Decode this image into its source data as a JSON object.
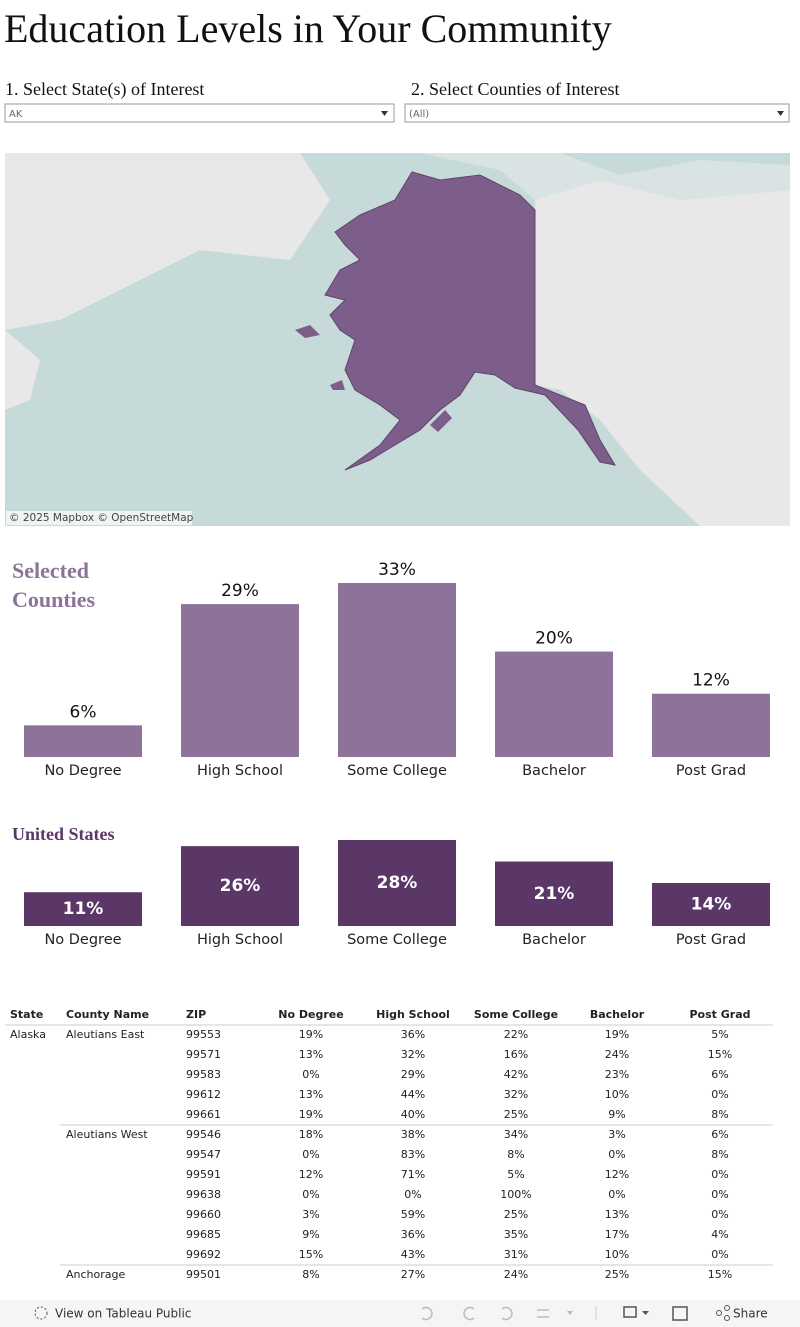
{
  "title": "Education Levels in Your Community",
  "filters": [
    {
      "label": "1.  Select State(s) of Interest",
      "value": "AK"
    },
    {
      "label": "2.  Select Counties of Interest",
      "value": "(All)"
    }
  ],
  "map": {
    "attribution": "© 2025 Mapbox  © OpenStreetMap"
  },
  "chart_data": [
    {
      "type": "bar",
      "title": "Selected Counties",
      "categories": [
        "No Degree",
        "High School",
        "Some College",
        "Bachelor",
        "Post Grad"
      ],
      "values": [
        6,
        29,
        33,
        20,
        12
      ],
      "value_labels": [
        "6%",
        "29%",
        "33%",
        "20%",
        "12%"
      ],
      "color": "#8d7399",
      "label_position": "outside"
    },
    {
      "type": "bar",
      "title": "United States",
      "categories": [
        "No Degree",
        "High School",
        "Some College",
        "Bachelor",
        "Post Grad"
      ],
      "values": [
        11,
        26,
        28,
        21,
        14
      ],
      "value_labels": [
        "11%",
        "26%",
        "28%",
        "21%",
        "14%"
      ],
      "color": "#5b3768",
      "label_position": "inside"
    }
  ],
  "table": {
    "columns": [
      "State",
      "County Name",
      "ZIP",
      "No Degree",
      "High School",
      "Some College",
      "Bachelor",
      "Post Grad"
    ],
    "states": [
      {
        "name": "Alaska",
        "counties": [
          {
            "name": "Aleutians East",
            "rows": [
              [
                "99553",
                "19%",
                "36%",
                "22%",
                "19%",
                "5%"
              ],
              [
                "99571",
                "13%",
                "32%",
                "16%",
                "24%",
                "15%"
              ],
              [
                "99583",
                "0%",
                "29%",
                "42%",
                "23%",
                "6%"
              ],
              [
                "99612",
                "13%",
                "44%",
                "32%",
                "10%",
                "0%"
              ],
              [
                "99661",
                "19%",
                "40%",
                "25%",
                "9%",
                "8%"
              ]
            ]
          },
          {
            "name": "Aleutians West",
            "rows": [
              [
                "99546",
                "18%",
                "38%",
                "34%",
                "3%",
                "6%"
              ],
              [
                "99547",
                "0%",
                "83%",
                "8%",
                "0%",
                "8%"
              ],
              [
                "99591",
                "12%",
                "71%",
                "5%",
                "12%",
                "0%"
              ],
              [
                "99638",
                "0%",
                "0%",
                "100%",
                "0%",
                "0%"
              ],
              [
                "99660",
                "3%",
                "59%",
                "25%",
                "13%",
                "0%"
              ],
              [
                "99685",
                "9%",
                "36%",
                "35%",
                "17%",
                "4%"
              ],
              [
                "99692",
                "15%",
                "43%",
                "31%",
                "10%",
                "0%"
              ]
            ]
          },
          {
            "name": "Anchorage",
            "rows": [
              [
                "99501",
                "8%",
                "27%",
                "24%",
                "25%",
                "15%"
              ]
            ]
          }
        ]
      }
    ]
  },
  "footer": {
    "link": "View on Tableau Public",
    "share": "Share"
  }
}
